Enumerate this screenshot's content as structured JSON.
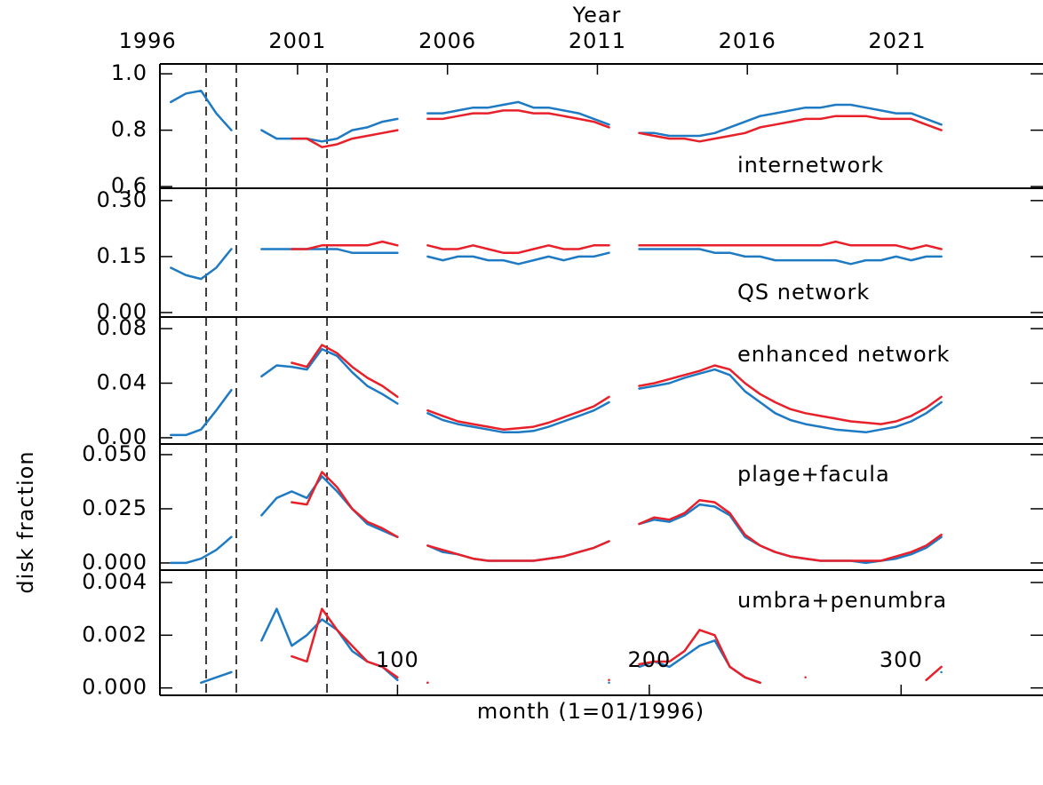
{
  "chart_data": [
    {
      "type": "line",
      "title": "internetwork",
      "x2label": "Year",
      "x2lim": [
        1996.44,
        2025.83
      ],
      "x2ticks": [
        1996,
        2001,
        2006,
        2011,
        2016,
        2021
      ],
      "xlim": [
        6,
        356
      ],
      "vlines": [
        24,
        36,
        72
      ],
      "ylim": [
        0.594,
        1.035
      ],
      "yticks": [
        {
          "value": 1,
          "label": "1.0"
        },
        0.8,
        0.6
      ],
      "x": [
        10,
        16,
        22,
        28,
        34,
        40,
        46,
        52,
        58,
        64,
        70,
        76,
        82,
        88,
        94,
        100,
        106,
        112,
        118,
        124,
        130,
        136,
        142,
        148,
        154,
        160,
        166,
        172,
        178,
        184,
        190,
        196,
        202,
        208,
        214,
        220,
        226,
        232,
        238,
        244,
        250,
        256,
        262,
        268,
        274,
        280,
        286,
        292,
        298,
        304,
        310,
        316
      ],
      "series": [
        {
          "color": "#1f7ac4",
          "values": [
            0.9,
            0.93,
            0.94,
            0.86,
            0.8,
            null,
            0.8,
            0.77,
            0.77,
            0.77,
            0.76,
            0.77,
            0.8,
            0.81,
            0.83,
            0.84,
            null,
            0.86,
            0.86,
            0.87,
            0.88,
            0.88,
            0.89,
            0.9,
            0.88,
            0.88,
            0.87,
            0.86,
            0.84,
            0.82,
            null,
            0.79,
            0.79,
            0.78,
            0.78,
            0.78,
            0.79,
            0.81,
            0.83,
            0.85,
            0.86,
            0.87,
            0.88,
            0.88,
            0.89,
            0.89,
            0.88,
            0.87,
            0.86,
            0.86,
            0.84,
            0.82
          ]
        },
        {
          "color": "#e8202a",
          "values": [
            null,
            null,
            null,
            null,
            null,
            null,
            null,
            null,
            0.77,
            0.77,
            0.74,
            0.75,
            0.77,
            0.78,
            0.79,
            0.8,
            null,
            0.84,
            0.84,
            0.85,
            0.86,
            0.86,
            0.87,
            0.87,
            0.86,
            0.86,
            0.85,
            0.84,
            0.83,
            0.81,
            null,
            0.79,
            0.78,
            0.77,
            0.77,
            0.76,
            0.77,
            0.78,
            0.79,
            0.81,
            0.82,
            0.83,
            0.84,
            0.84,
            0.85,
            0.85,
            0.85,
            0.84,
            0.84,
            0.84,
            0.82,
            0.8
          ]
        }
      ]
    },
    {
      "type": "line",
      "title": "QS network",
      "xlim": [
        6,
        356
      ],
      "vlines": [
        24,
        36,
        72
      ],
      "ylim": [
        -0.012,
        0.333
      ],
      "yticks": [
        {
          "value": 0.3,
          "label": "0.30"
        },
        0.15,
        {
          "value": 0,
          "label": "0.00"
        }
      ],
      "x": [
        10,
        16,
        22,
        28,
        34,
        40,
        46,
        52,
        58,
        64,
        70,
        76,
        82,
        88,
        94,
        100,
        106,
        112,
        118,
        124,
        130,
        136,
        142,
        148,
        154,
        160,
        166,
        172,
        178,
        184,
        190,
        196,
        202,
        208,
        214,
        220,
        226,
        232,
        238,
        244,
        250,
        256,
        262,
        268,
        274,
        280,
        286,
        292,
        298,
        304,
        310,
        316
      ],
      "series": [
        {
          "color": "#1f7ac4",
          "values": [
            0.12,
            0.1,
            0.09,
            0.12,
            0.17,
            null,
            0.17,
            0.17,
            0.17,
            0.17,
            0.17,
            0.17,
            0.16,
            0.16,
            0.16,
            0.16,
            null,
            0.15,
            0.14,
            0.15,
            0.15,
            0.14,
            0.14,
            0.13,
            0.14,
            0.15,
            0.14,
            0.15,
            0.15,
            0.16,
            null,
            0.17,
            0.17,
            0.17,
            0.17,
            0.17,
            0.16,
            0.16,
            0.15,
            0.15,
            0.14,
            0.14,
            0.14,
            0.14,
            0.14,
            0.13,
            0.14,
            0.14,
            0.15,
            0.14,
            0.15,
            0.15
          ]
        },
        {
          "color": "#e8202a",
          "values": [
            null,
            null,
            null,
            null,
            null,
            null,
            null,
            null,
            0.17,
            0.17,
            0.18,
            0.18,
            0.18,
            0.18,
            0.19,
            0.18,
            null,
            0.18,
            0.17,
            0.17,
            0.18,
            0.17,
            0.16,
            0.16,
            0.17,
            0.18,
            0.17,
            0.17,
            0.18,
            0.18,
            null,
            0.18,
            0.18,
            0.18,
            0.18,
            0.18,
            0.18,
            0.18,
            0.18,
            0.18,
            0.18,
            0.18,
            0.18,
            0.18,
            0.19,
            0.18,
            0.18,
            0.18,
            0.18,
            0.17,
            0.18,
            0.17
          ]
        }
      ]
    },
    {
      "type": "line",
      "title": "enhanced network",
      "xlim": [
        6,
        356
      ],
      "vlines": [
        24,
        36,
        72
      ],
      "ylim": [
        -0.0046,
        0.0885
      ],
      "yticks": [
        0.08,
        0.04,
        {
          "value": 0,
          "label": "0.00"
        }
      ],
      "x": [
        10,
        16,
        22,
        28,
        34,
        40,
        46,
        52,
        58,
        64,
        70,
        76,
        82,
        88,
        94,
        100,
        106,
        112,
        118,
        124,
        130,
        136,
        142,
        148,
        154,
        160,
        166,
        172,
        178,
        184,
        190,
        196,
        202,
        208,
        214,
        220,
        226,
        232,
        238,
        244,
        250,
        256,
        262,
        268,
        274,
        280,
        286,
        292,
        298,
        304,
        310,
        316
      ],
      "series": [
        {
          "color": "#1f7ac4",
          "values": [
            0.002,
            0.002,
            0.006,
            0.02,
            0.035,
            null,
            0.045,
            0.053,
            0.052,
            0.05,
            0.065,
            0.06,
            0.048,
            0.038,
            0.032,
            0.025,
            null,
            0.018,
            0.013,
            0.01,
            0.008,
            0.006,
            0.004,
            0.004,
            0.005,
            0.008,
            0.012,
            0.016,
            0.02,
            0.026,
            null,
            0.036,
            0.038,
            0.04,
            0.044,
            0.047,
            0.05,
            0.046,
            0.034,
            0.026,
            0.018,
            0.013,
            0.01,
            0.008,
            0.006,
            0.005,
            0.004,
            0.006,
            0.008,
            0.012,
            0.018,
            0.026
          ]
        },
        {
          "color": "#e8202a",
          "values": [
            null,
            null,
            null,
            null,
            null,
            null,
            null,
            null,
            0.055,
            0.052,
            0.068,
            0.062,
            0.052,
            0.044,
            0.038,
            0.03,
            null,
            0.02,
            0.016,
            0.012,
            0.01,
            0.008,
            0.006,
            0.007,
            0.008,
            0.011,
            0.015,
            0.019,
            0.023,
            0.03,
            null,
            0.038,
            0.04,
            0.043,
            0.046,
            0.049,
            0.053,
            0.05,
            0.04,
            0.032,
            0.026,
            0.021,
            0.018,
            0.016,
            0.014,
            0.012,
            0.011,
            0.01,
            0.012,
            0.016,
            0.022,
            0.03
          ]
        }
      ]
    },
    {
      "type": "line",
      "title": "plage+facula",
      "ylabel": "disk fraction",
      "xlim": [
        6,
        356
      ],
      "vlines": [
        24,
        36,
        72
      ],
      "ylim": [
        -0.0033,
        0.0549
      ],
      "yticks": [
        {
          "value": 0.05,
          "label": "0.050"
        },
        0.025,
        {
          "value": 0,
          "label": "0.000"
        }
      ],
      "x": [
        10,
        16,
        22,
        28,
        34,
        40,
        46,
        52,
        58,
        64,
        70,
        76,
        82,
        88,
        94,
        100,
        106,
        112,
        118,
        124,
        130,
        136,
        142,
        148,
        154,
        160,
        166,
        172,
        178,
        184,
        190,
        196,
        202,
        208,
        214,
        220,
        226,
        232,
        238,
        244,
        250,
        256,
        262,
        268,
        274,
        280,
        286,
        292,
        298,
        304,
        310,
        316
      ],
      "series": [
        {
          "color": "#1f7ac4",
          "values": [
            0,
            0,
            0.002,
            0.006,
            0.012,
            null,
            0.022,
            0.03,
            0.033,
            0.03,
            0.04,
            0.033,
            0.025,
            0.018,
            0.015,
            0.012,
            null,
            0.008,
            0.005,
            0.004,
            0.002,
            0.001,
            0.001,
            0.001,
            0.001,
            0.002,
            0.003,
            0.005,
            0.007,
            0.01,
            null,
            0.018,
            0.02,
            0.019,
            0.022,
            0.027,
            0.026,
            0.022,
            0.012,
            0.008,
            0.005,
            0.003,
            0.002,
            0.001,
            0.001,
            0.001,
            0,
            0.001,
            0.002,
            0.004,
            0.007,
            0.012
          ]
        },
        {
          "color": "#e8202a",
          "values": [
            null,
            null,
            null,
            null,
            null,
            null,
            null,
            null,
            0.028,
            0.027,
            0.042,
            0.035,
            0.025,
            0.019,
            0.016,
            0.012,
            null,
            0.008,
            0.006,
            0.004,
            0.002,
            0.001,
            0.001,
            0.001,
            0.001,
            0.002,
            0.003,
            0.005,
            0.007,
            0.01,
            null,
            0.018,
            0.021,
            0.02,
            0.023,
            0.029,
            0.028,
            0.023,
            0.013,
            0.008,
            0.005,
            0.003,
            0.002,
            0.001,
            0.001,
            0.001,
            0.001,
            0.001,
            0.003,
            0.005,
            0.008,
            0.013
          ]
        }
      ]
    },
    {
      "type": "line",
      "title": "umbra+penumbra",
      "xlabel": "month (1=01/1996)",
      "xlim": [
        6,
        356
      ],
      "xticks": [
        100,
        200,
        300
      ],
      "vlines": [
        24,
        36,
        72
      ],
      "ylim": [
        -0.00028,
        0.00447
      ],
      "yticks": [
        0.004,
        0.002,
        {
          "value": 0,
          "label": "0.000"
        }
      ],
      "x": [
        10,
        16,
        22,
        28,
        34,
        40,
        46,
        52,
        58,
        64,
        70,
        76,
        82,
        88,
        94,
        100,
        106,
        112,
        118,
        124,
        130,
        136,
        142,
        148,
        154,
        160,
        166,
        172,
        178,
        184,
        190,
        196,
        202,
        208,
        214,
        220,
        226,
        232,
        238,
        244,
        250,
        256,
        262,
        268,
        274,
        280,
        286,
        292,
        298,
        304,
        310,
        316
      ],
      "series": [
        {
          "color": "#1f7ac4",
          "values": [
            null,
            null,
            0.0002,
            0.0004,
            0.0006,
            null,
            0.0018,
            0.003,
            0.0016,
            0.002,
            0.0026,
            0.0022,
            0.0014,
            0.001,
            0.0008,
            0.0003,
            null,
            0.0002,
            null,
            null,
            null,
            null,
            null,
            null,
            null,
            null,
            null,
            null,
            null,
            0.0002,
            null,
            0.0008,
            0.001,
            0.0008,
            0.0012,
            0.0016,
            0.0018,
            0.0008,
            0.0004,
            0.0002,
            null,
            null,
            null,
            null,
            null,
            null,
            null,
            null,
            null,
            null,
            null,
            0.0006
          ]
        },
        {
          "color": "#e8202a",
          "values": [
            null,
            null,
            null,
            null,
            null,
            null,
            null,
            null,
            0.0012,
            0.001,
            0.003,
            0.0022,
            0.0016,
            0.001,
            0.0008,
            0.0004,
            null,
            0.0002,
            null,
            null,
            null,
            null,
            null,
            null,
            null,
            null,
            null,
            null,
            null,
            0.0003,
            null,
            0.0009,
            0.001,
            0.001,
            0.0014,
            0.0022,
            0.002,
            0.0008,
            0.0004,
            0.0002,
            null,
            null,
            0.0004,
            null,
            null,
            null,
            null,
            null,
            null,
            null,
            0.0003,
            0.0008
          ]
        }
      ]
    }
  ]
}
